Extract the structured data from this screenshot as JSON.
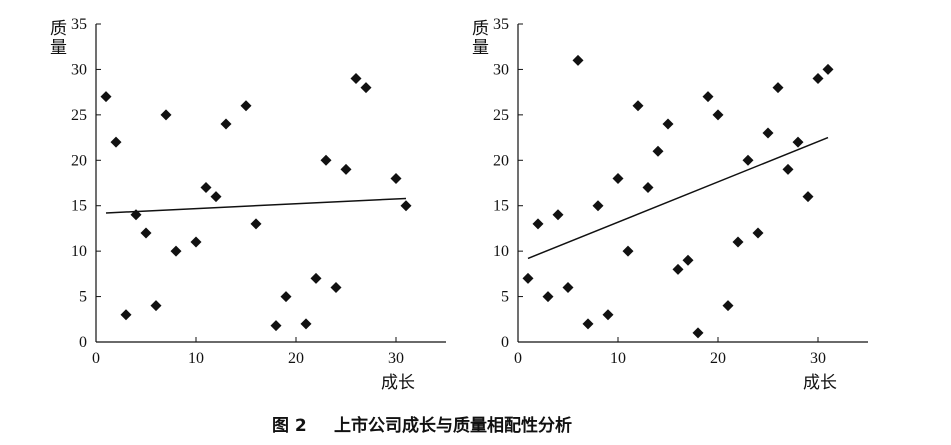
{
  "figure_caption": {
    "number": "图 2",
    "text": "上市公司成长与质量相配性分析"
  },
  "chart_data": [
    {
      "type": "scatter",
      "xlabel": "成长",
      "ylabel": "质量",
      "xlim": [
        0,
        35
      ],
      "ylim": [
        0,
        35
      ],
      "xticks": [
        0,
        10,
        20,
        30
      ],
      "yticks": [
        0,
        5,
        10,
        15,
        20,
        25,
        30,
        35
      ],
      "marker": "diamond",
      "points": [
        [
          1,
          27
        ],
        [
          2,
          22
        ],
        [
          3,
          3
        ],
        [
          4,
          14
        ],
        [
          5,
          12
        ],
        [
          6,
          4
        ],
        [
          7,
          25
        ],
        [
          8,
          10
        ],
        [
          10,
          11
        ],
        [
          11,
          17
        ],
        [
          12,
          16
        ],
        [
          13,
          24
        ],
        [
          15,
          26
        ],
        [
          16,
          13
        ],
        [
          18,
          1.8
        ],
        [
          19,
          5
        ],
        [
          21,
          2
        ],
        [
          22,
          7
        ],
        [
          23,
          20
        ],
        [
          24,
          6
        ],
        [
          25,
          19
        ],
        [
          26,
          29
        ],
        [
          27,
          28
        ],
        [
          30,
          18
        ],
        [
          31,
          15
        ]
      ],
      "trendline": {
        "x": [
          1,
          31
        ],
        "y": [
          14.2,
          15.8
        ]
      }
    },
    {
      "type": "scatter",
      "xlabel": "成长",
      "ylabel": "质量",
      "xlim": [
        0,
        35
      ],
      "ylim": [
        0,
        35
      ],
      "xticks": [
        0,
        10,
        20,
        30
      ],
      "yticks": [
        0,
        5,
        10,
        15,
        20,
        25,
        30,
        35
      ],
      "marker": "diamond",
      "points": [
        [
          1,
          7
        ],
        [
          2,
          13
        ],
        [
          3,
          5
        ],
        [
          4,
          14
        ],
        [
          5,
          6
        ],
        [
          6,
          31
        ],
        [
          7,
          2
        ],
        [
          8,
          15
        ],
        [
          9,
          3
        ],
        [
          10,
          18
        ],
        [
          11,
          10
        ],
        [
          12,
          26
        ],
        [
          13,
          17
        ],
        [
          14,
          21
        ],
        [
          15,
          24
        ],
        [
          16,
          8
        ],
        [
          17,
          9
        ],
        [
          18,
          1
        ],
        [
          19,
          27
        ],
        [
          20,
          25
        ],
        [
          21,
          4
        ],
        [
          22,
          11
        ],
        [
          23,
          20
        ],
        [
          24,
          12
        ],
        [
          25,
          23
        ],
        [
          26,
          28
        ],
        [
          27,
          19
        ],
        [
          28,
          22
        ],
        [
          29,
          16
        ],
        [
          30,
          29
        ],
        [
          31,
          30
        ]
      ],
      "trendline": {
        "x": [
          1,
          31
        ],
        "y": [
          9.2,
          22.5
        ]
      }
    }
  ]
}
